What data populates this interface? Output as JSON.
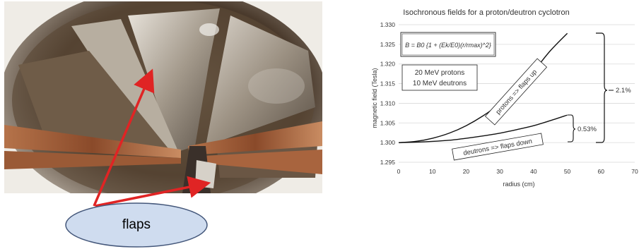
{
  "photo": {
    "callout_label": "flaps"
  },
  "chart_data": {
    "type": "line",
    "title": "Isochronous fields for a proton/deutron cyclotron",
    "xlabel": "radius (cm)",
    "ylabel": "magnetic field (Tesla)",
    "xlim": [
      0,
      70
    ],
    "ylim": [
      1.295,
      1.33
    ],
    "x_ticks": [
      "0",
      "10",
      "20",
      "30",
      "40",
      "50",
      "60",
      "70"
    ],
    "y_ticks": [
      "1.295",
      "1.300",
      "1.305",
      "1.310",
      "1.315",
      "1.320",
      "1.325",
      "1.330"
    ],
    "grid": true,
    "series": [
      {
        "x": [
          0,
          5,
          10,
          15,
          20,
          25,
          30,
          35,
          40,
          45,
          50
        ],
        "values": [
          1.3,
          1.3003,
          1.3011,
          1.3024,
          1.3043,
          1.3068,
          1.3099,
          1.3137,
          1.3182,
          1.3234,
          1.3278
        ]
      },
      {
        "x": [
          0,
          5,
          10,
          15,
          20,
          25,
          30,
          35,
          40,
          45,
          50
        ],
        "values": [
          1.3,
          1.3001,
          1.3003,
          1.3006,
          1.3011,
          1.3017,
          1.3024,
          1.3033,
          1.3043,
          1.3056,
          1.307
        ]
      }
    ],
    "annotations": {
      "formula": "B = B0 {1 + (Ek/E0)(r/rmax)^2}",
      "energy_line1": "20 MeV protons",
      "energy_line2": "10 MeV deutrons",
      "protons_label": "protons => flaps up",
      "deutrons_label": "deutrons => flaps down",
      "bracket_protons": "2.1%",
      "bracket_deutrons": "0.53%"
    },
    "colors": {
      "curve": "#111111",
      "grid": "#d9d9d9"
    }
  }
}
